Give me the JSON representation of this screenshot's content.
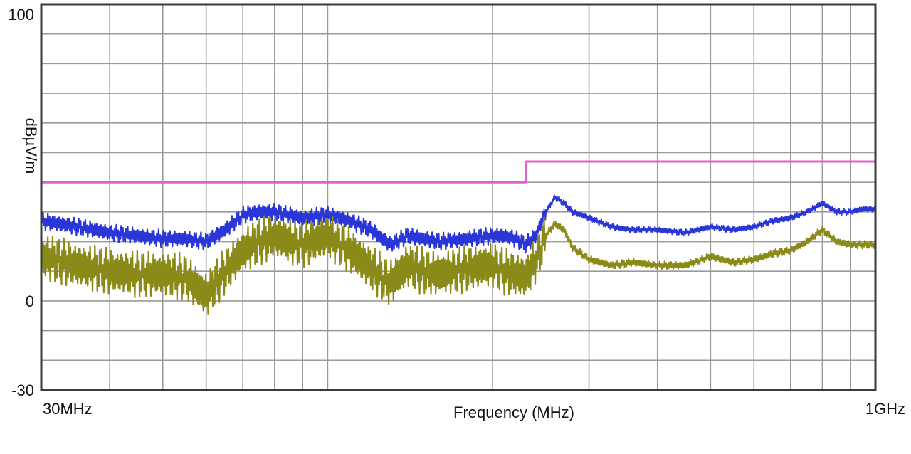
{
  "chart_data": {
    "type": "line",
    "title": "",
    "xlabel": "Frequency (MHz)",
    "ylabel": "dBµV/m",
    "x_scale": "log",
    "xlim": [
      30,
      1000
    ],
    "ylim": [
      -30,
      100
    ],
    "x_tick_labels": [
      {
        "value": 30,
        "label": "30MHz"
      },
      {
        "value": 1000,
        "label": "1GHz"
      }
    ],
    "y_tick_labels": [
      {
        "value": 100,
        "label": "100"
      },
      {
        "value": 0,
        "label": "0"
      },
      {
        "value": -30,
        "label": "-30"
      }
    ],
    "grid": true,
    "legend": "none",
    "series": [
      {
        "color": "#e060d0",
        "style": "step",
        "x": [
          30,
          230,
          230,
          1000
        ],
        "y": [
          40,
          40,
          47,
          47
        ]
      },
      {
        "color": "#2a36d8",
        "style": "noisy",
        "x": [
          30,
          35,
          40,
          45,
          50,
          55,
          60,
          65,
          70,
          75,
          80,
          85,
          90,
          100,
          110,
          120,
          130,
          140,
          150,
          160,
          180,
          200,
          210,
          220,
          230,
          240,
          250,
          260,
          270,
          280,
          300,
          330,
          360,
          400,
          450,
          500,
          550,
          600,
          650,
          700,
          750,
          800,
          850,
          900,
          950,
          1000
        ],
        "y": [
          27,
          25,
          23,
          22,
          21,
          21,
          20,
          24,
          29,
          30,
          30,
          29,
          28,
          29,
          27,
          24,
          19,
          22,
          21,
          20,
          21,
          22,
          22,
          21,
          19,
          22,
          30,
          35,
          33,
          30,
          28,
          25,
          24,
          24,
          23,
          25,
          24,
          25,
          27,
          28,
          30,
          33,
          30,
          30,
          31,
          31
        ]
      },
      {
        "color": "#8a8a18",
        "style": "noisy",
        "x": [
          30,
          35,
          40,
          45,
          50,
          55,
          60,
          65,
          70,
          75,
          80,
          85,
          90,
          100,
          110,
          120,
          130,
          140,
          150,
          160,
          180,
          200,
          210,
          220,
          230,
          240,
          250,
          260,
          270,
          280,
          300,
          330,
          360,
          400,
          450,
          500,
          550,
          600,
          650,
          700,
          750,
          800,
          850,
          900,
          950,
          1000
        ],
        "y": [
          15,
          12,
          10,
          9,
          9,
          8,
          2,
          10,
          17,
          20,
          22,
          20,
          19,
          22,
          17,
          11,
          6,
          12,
          10,
          9,
          11,
          12,
          10,
          9,
          8,
          14,
          22,
          26,
          24,
          18,
          14,
          12,
          13,
          12,
          12,
          15,
          13,
          14,
          16,
          17,
          20,
          24,
          20,
          19,
          19,
          19
        ]
      }
    ]
  }
}
